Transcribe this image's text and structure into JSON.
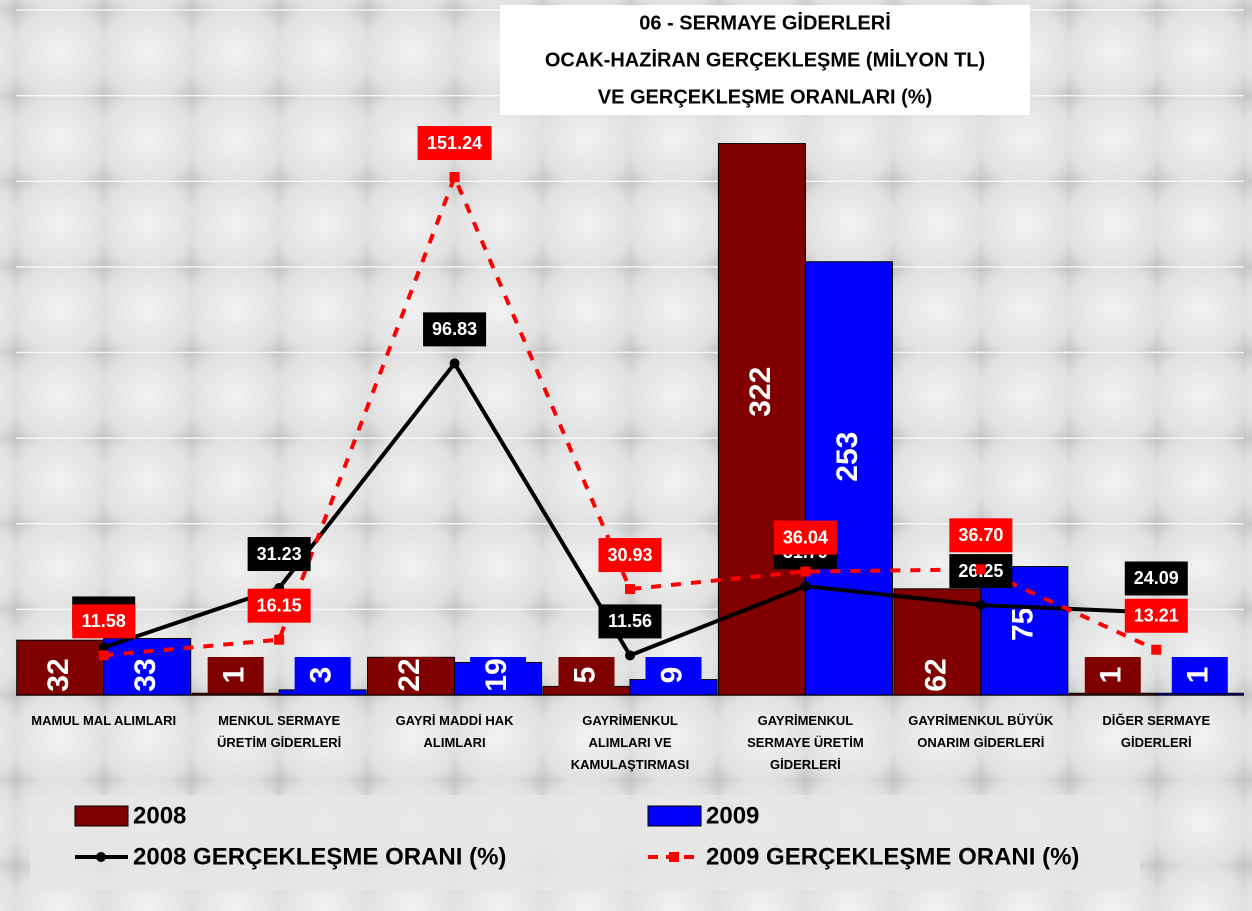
{
  "chart_data": {
    "type": "bar_line",
    "title": [
      "06 - SERMAYE GİDERLERİ",
      "OCAK-HAZİRAN GERÇEKLEŞME (MİLYON TL)",
      "VE GERÇEKLEŞME ORANLARI (%)"
    ],
    "categories": [
      "MAMUL MAL ALIMLARI",
      "MENKUL SERMAYE ÜRETİM GİDERLERİ",
      "GAYRİ MADDİ HAK ALIMLARI",
      "GAYRİMENKUL ALIMLARI VE KAMULAŞTIRMASI",
      "GAYRİMENKUL SERMAYE ÜRETİM GİDERLERİ",
      "GAYRİMENKUL BÜYÜK ONARIM GİDERLERİ",
      "DİĞER SERMAYE GİDERLERİ"
    ],
    "series": [
      {
        "name": "2008",
        "type": "bar",
        "color": "#800000",
        "values": [
          32,
          1,
          22,
          5,
          322,
          62,
          1
        ]
      },
      {
        "name": "2009",
        "type": "bar",
        "color": "#0000ff",
        "values": [
          33,
          3,
          19,
          9,
          253,
          75,
          1
        ]
      },
      {
        "name": "2008 GERÇEKLEŞME ORANI (%)",
        "type": "line",
        "axis": "y2",
        "color": "#000000",
        "dash": false,
        "marker": "circle",
        "values": [
          13.88,
          31.23,
          96.83,
          11.56,
          31.79,
          26.25,
          24.09
        ],
        "value_labels": [
          "13.88",
          "31.23",
          "96.83",
          "11.56",
          "31.79",
          "26.25",
          "24.09"
        ]
      },
      {
        "name": "2009 GERÇEKLEŞME ORANI (%)",
        "type": "line",
        "axis": "y2",
        "color": "#ff0000",
        "dash": true,
        "marker": "square",
        "values": [
          11.58,
          16.15,
          151.24,
          30.93,
          36.04,
          36.7,
          13.21
        ],
        "value_labels": [
          "11.58",
          "16.15",
          "151.24",
          "30.93",
          "36.04",
          "36.70",
          "13.21"
        ]
      }
    ],
    "ylim": [
      0,
      400
    ],
    "yticks": [
      0,
      50,
      100,
      150,
      200,
      250,
      300,
      350,
      400
    ],
    "y2lim": [
      0,
      200
    ],
    "grid": true
  }
}
